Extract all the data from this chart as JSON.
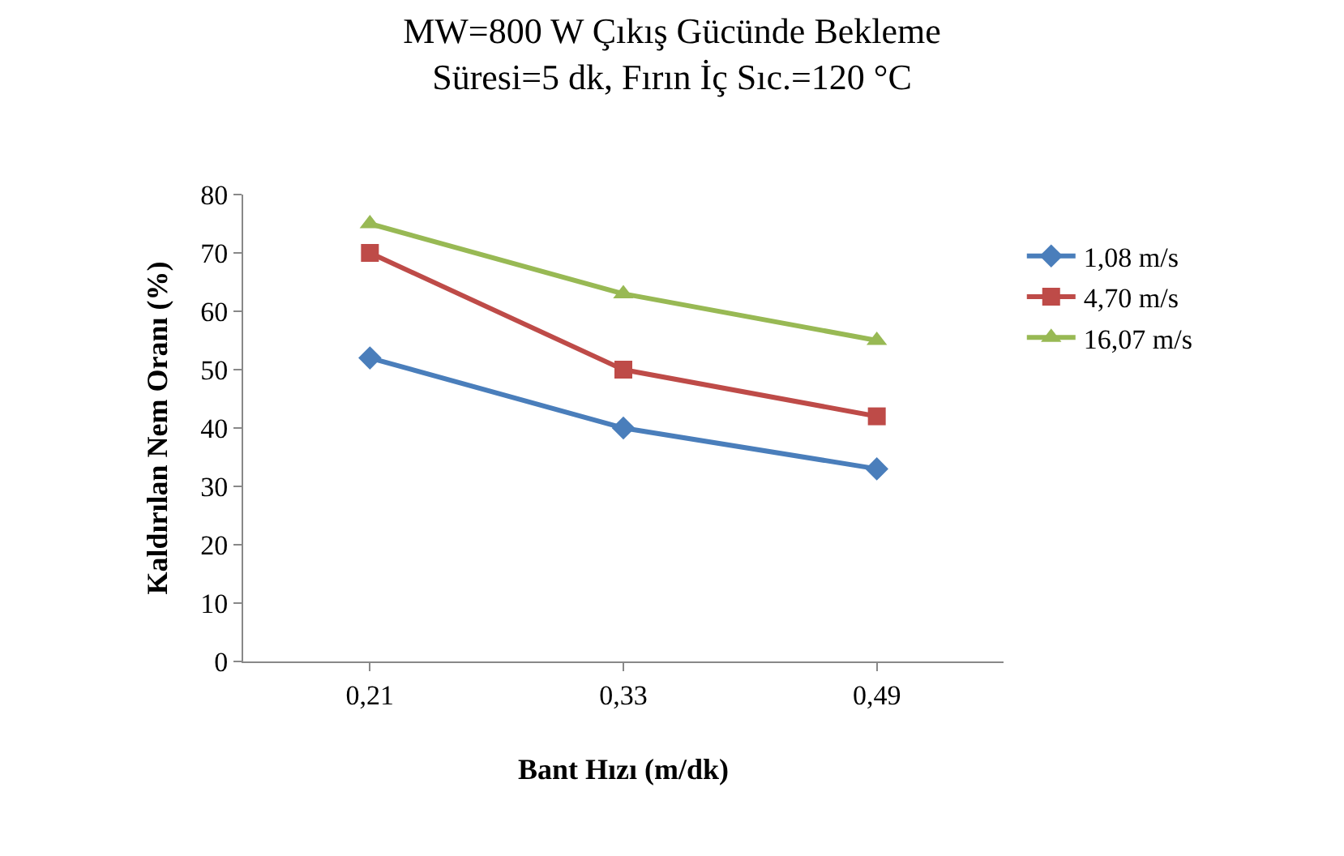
{
  "chart_data": {
    "type": "line",
    "title": "MW=800 W Çıkış Gücünde Bekleme\nSüresi=5 dk, Fırın İç Sıc.=120 °C",
    "xlabel": "Bant Hızı (m/dk)",
    "ylabel": "Kaldırılan Nem Oranı (%)",
    "categories": [
      "0,21",
      "0,33",
      "0,49"
    ],
    "series": [
      {
        "name": "1,08 m/s",
        "color": "#4a7ebb",
        "marker": "diamond",
        "values": [
          52,
          40,
          33
        ]
      },
      {
        "name": "4,70 m/s",
        "color": "#be4b48",
        "marker": "square",
        "values": [
          70,
          50,
          42
        ]
      },
      {
        "name": "16,07 m/s",
        "color": "#98b954",
        "marker": "triangle",
        "values": [
          75,
          63,
          55
        ]
      }
    ],
    "ylim": [
      0,
      80
    ],
    "yticks": [
      0,
      10,
      20,
      30,
      40,
      50,
      60,
      70,
      80
    ],
    "grid": false,
    "legend": "right"
  }
}
